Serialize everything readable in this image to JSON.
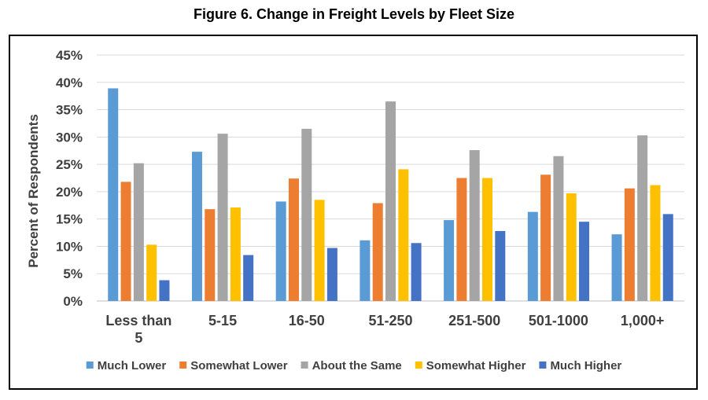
{
  "chart_data": {
    "type": "bar",
    "title": "Figure 6.  Change in Freight Levels by Fleet Size",
    "xlabel": "",
    "ylabel": "Percent of Respondents",
    "ylim": [
      0,
      45
    ],
    "yticks": [
      "0%",
      "5%",
      "10%",
      "15%",
      "20%",
      "25%",
      "30%",
      "35%",
      "40%",
      "45%"
    ],
    "grid": true,
    "legend_position": "bottom",
    "categories": [
      [
        "Less than",
        "5"
      ],
      [
        "5-15"
      ],
      [
        "16-50"
      ],
      [
        "51-250"
      ],
      [
        "251-500"
      ],
      [
        "501-1000"
      ],
      [
        "1,000+"
      ]
    ],
    "series": [
      {
        "name": "Much Lower",
        "color": "#5B9BD5",
        "values": [
          38.9,
          27.3,
          18.2,
          11.1,
          14.8,
          16.3,
          12.2
        ]
      },
      {
        "name": "Somewhat Lower",
        "color": "#ED7D31",
        "values": [
          21.8,
          16.8,
          22.4,
          17.9,
          22.5,
          23.1,
          20.6
        ]
      },
      {
        "name": "About the Same",
        "color": "#A5A5A5",
        "values": [
          25.2,
          30.6,
          31.5,
          36.5,
          27.6,
          26.5,
          30.3
        ]
      },
      {
        "name": "Somewhat Higher",
        "color": "#FFC000",
        "values": [
          10.3,
          17.1,
          18.5,
          24.1,
          22.5,
          19.7,
          21.2
        ]
      },
      {
        "name": "Much Higher",
        "color": "#4472C4",
        "values": [
          3.8,
          8.4,
          9.7,
          10.6,
          12.8,
          14.5,
          15.9
        ]
      }
    ]
  }
}
